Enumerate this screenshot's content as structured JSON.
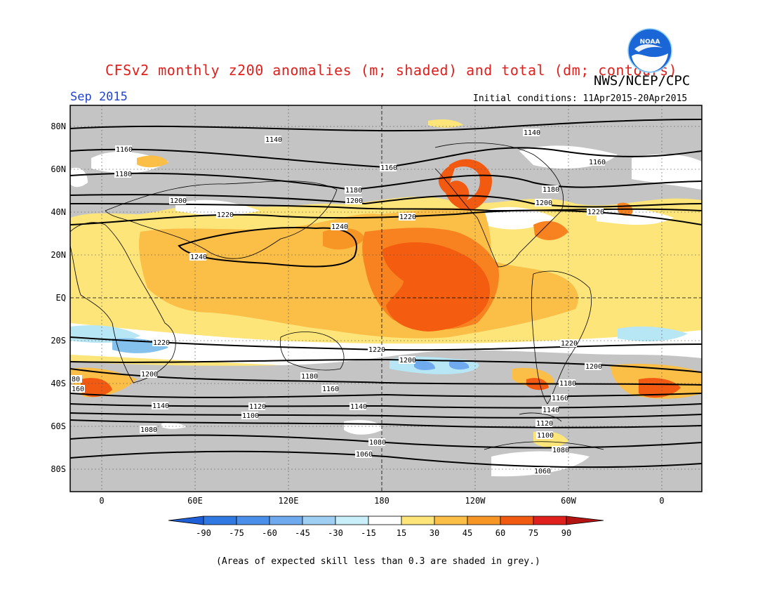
{
  "header": {
    "title": "CFSv2 monthly z200 anomalies (m; shaded) and total (dm; contours)",
    "agency": "NWS/NCEP/CPC",
    "month": "Sep 2015",
    "initial_conditions": "Initial conditions: 11Apr2015-20Apr2015",
    "logo_text": "NOAA"
  },
  "map": {
    "lat_labels": [
      "80N",
      "60N",
      "40N",
      "20N",
      "EQ",
      "20S",
      "40S",
      "60S",
      "80S"
    ],
    "lon_labels": [
      "0",
      "60E",
      "120E",
      "180",
      "120W",
      "60W",
      "0"
    ],
    "lon_range": [
      -20,
      380
    ],
    "lat_range": [
      -90,
      90
    ],
    "contour_labels": [
      "1140",
      "1160",
      "1180",
      "1200",
      "1220",
      "1240",
      "1220",
      "1200",
      "1180",
      "1160",
      "1140",
      "1120",
      "1100",
      "1080",
      "1060"
    ],
    "shade_colors": {
      "light_yellow": "#fde57a",
      "yellow_orange": "#fbbe47",
      "orange": "#f7821f",
      "red_orange": "#f04a10",
      "light_blue": "#b7e6f5",
      "mid_blue": "#84c1ec",
      "grey": "#c4c4c4"
    }
  },
  "colorbar": {
    "labels": [
      "-90",
      "-75",
      "-60",
      "-45",
      "-30",
      "-15",
      "15",
      "30",
      "45",
      "60",
      "75",
      "90"
    ],
    "colors": [
      "#1e5fd8",
      "#3078e2",
      "#4a90ea",
      "#6faaef",
      "#9fd0f4",
      "#c8effa",
      "#ffffff",
      "#fde57a",
      "#fbbe47",
      "#f79624",
      "#f15b11",
      "#e0201c",
      "#b31411"
    ]
  },
  "footnote": "(Areas of expected skill less than 0.3 are shaded in grey.)"
}
